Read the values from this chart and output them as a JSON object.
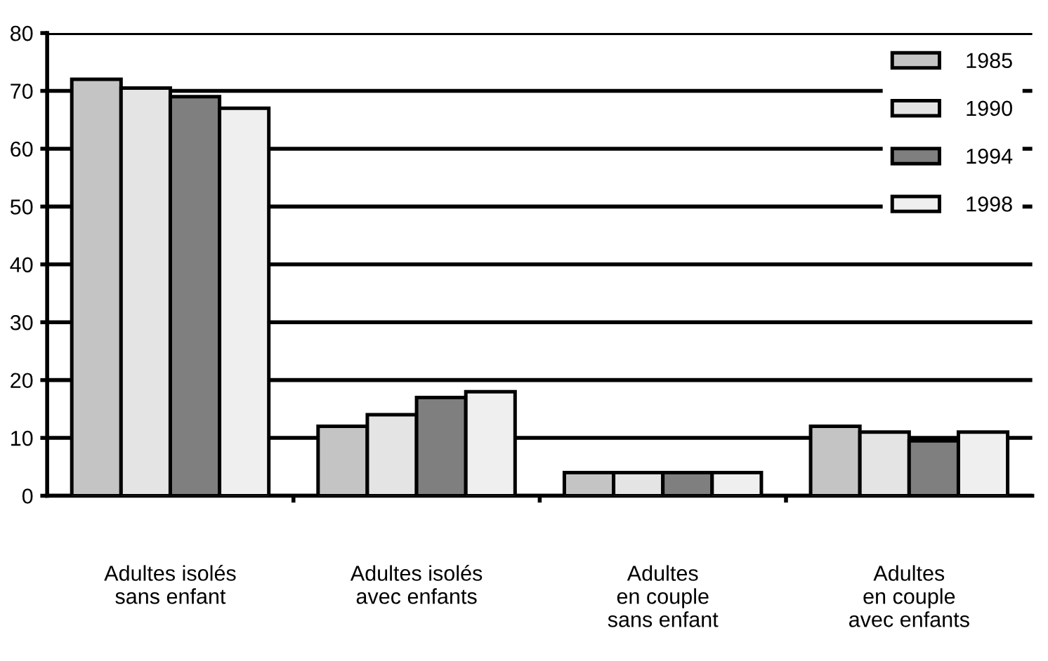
{
  "chart_data": {
    "type": "bar",
    "categories": [
      "Adultes isolés\nsans enfant",
      "Adultes isolés\navec enfants",
      "Adultes\nen couple\nsans enfant",
      "Adultes\nen couple\navec enfants"
    ],
    "series": [
      {
        "name": "1985",
        "color": "#c4c4c4",
        "values": [
          72,
          12,
          4,
          12
        ]
      },
      {
        "name": "1990",
        "color": "#e4e4e4",
        "values": [
          70.5,
          14,
          4,
          11
        ]
      },
      {
        "name": "1994",
        "color": "#7f7f7f",
        "values": [
          69,
          17,
          4,
          9.5
        ]
      },
      {
        "name": "1998",
        "color": "#efefef",
        "values": [
          67,
          18,
          4,
          11
        ]
      }
    ],
    "ylim": [
      0,
      80
    ],
    "yticks": [
      0,
      10,
      20,
      30,
      40,
      50,
      60,
      70,
      80
    ],
    "grid": "y",
    "legend": "top right"
  }
}
